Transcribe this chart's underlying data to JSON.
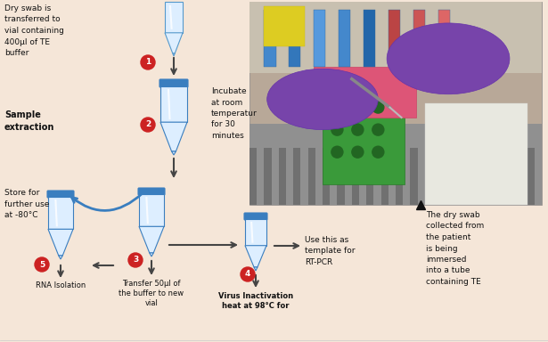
{
  "bg_color": "#f5e6d8",
  "steps": [
    {
      "number": "1",
      "label": "Dry swab is\ntransferred to\nvial containing\n400µl of TE\nbuffer"
    },
    {
      "number": "2",
      "label": "Incubate\nat room\ntemperatur\nfor 30\nminutes",
      "section_label": "Sample\nextraction"
    },
    {
      "number": "3",
      "label": "Transfer 50µl of\nthe buffer to new\nvial"
    },
    {
      "number": "4",
      "label": "Virus Inactivation\nheat at 98°C for",
      "use_label": "Use this as\ntemplate for\nRT-PCR"
    },
    {
      "number": "5",
      "label": "RNA Isolation",
      "store_label": "Store for\nfurther use\nat -80°C"
    }
  ],
  "side_note": "The dry swab\ncollected from\nthe patient\nis being\nimmersed\ninto a tube\ncontaining TE",
  "step_circle_color": "#cc2222",
  "vial_body_color": "#ddeeff",
  "vial_rim_color": "#3a7ebf",
  "vial_highlight": "#ffffff",
  "arrow_color": "#444444",
  "blue_arrow_color": "#3a7ebf",
  "text_color": "#111111",
  "photo_bg": "#b8a898",
  "photo_glove_purple": "#7755aa",
  "photo_rack_green": "#4a9a4a",
  "photo_liquid_pink": "#ee6688",
  "photo_bench": "#999999",
  "photo_tube_blue": "#4488cc",
  "photo_sky": "#c8bca8",
  "border_color": "#cccccc"
}
